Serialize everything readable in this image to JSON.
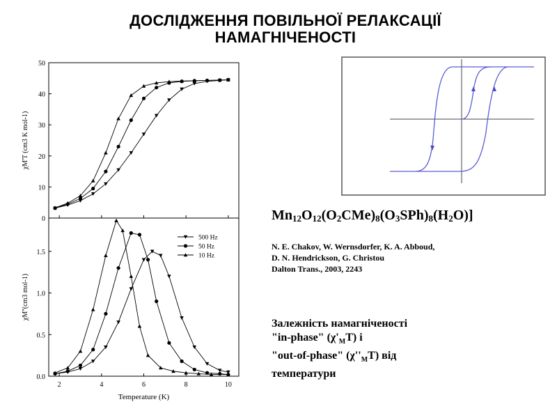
{
  "title": {
    "line1": "ДОСЛІДЖЕННЯ ПОВІЛЬНОЇ РЕЛАКСАЦІЇ",
    "line2": "НАМАГНІЧЕНОСТІ"
  },
  "compound": {
    "formula_parts": [
      "Mn",
      "12",
      "O",
      "12",
      "(O",
      "2",
      "CMe)",
      "8",
      "(O",
      "3",
      "SPh)",
      "8",
      "(H",
      "2",
      "O)]"
    ]
  },
  "reference": {
    "line1": "N. E. Chakov, W. Wernsdorfer, K. A. Abboud,",
    "line2": "D. N. Hendrickson, G. Christou",
    "line3": "Dalton Trans., 2003, 2243"
  },
  "description": {
    "line1": "Залежність намагніченості",
    "line2_pre": "\"in-phase\" (χ'",
    "line2_sub": "M",
    "line2_post": "T) і",
    "line3_pre": "\"out-of-phase\" (χ''",
    "line3_sub": "M",
    "line3_post": "T) від",
    "line4": "температури"
  },
  "chart_data": [
    {
      "type": "line",
      "panel": "top",
      "ylabel": "χM'T (cm3 K mol-1)",
      "ylim": [
        0,
        50
      ],
      "yticks": [
        "0",
        "10",
        "20",
        "30",
        "40",
        "50"
      ],
      "xlim": [
        1.5,
        10.5
      ],
      "series": [
        {
          "name": "500 Hz",
          "marker": "triangle-down",
          "x": [
            1.8,
            2.4,
            3.0,
            3.6,
            4.2,
            4.8,
            5.4,
            6.0,
            6.6,
            7.2,
            7.8,
            8.4,
            9.0,
            9.6,
            10.0
          ],
          "y": [
            3.2,
            4.2,
            5.6,
            7.8,
            11.0,
            15.5,
            21.0,
            27.0,
            33.0,
            38.0,
            41.5,
            43.3,
            44.0,
            44.3,
            44.5
          ]
        },
        {
          "name": "50 Hz",
          "marker": "circle",
          "x": [
            1.8,
            2.4,
            3.0,
            3.6,
            4.2,
            4.8,
            5.4,
            6.0,
            6.6,
            7.2,
            7.8,
            8.4,
            9.0,
            9.6,
            10.0
          ],
          "y": [
            3.2,
            4.5,
            6.3,
            9.5,
            15.0,
            23.0,
            31.5,
            38.5,
            42.0,
            43.5,
            44.0,
            44.2,
            44.3,
            44.4,
            44.5
          ]
        },
        {
          "name": "10 Hz",
          "marker": "triangle-up",
          "x": [
            1.8,
            2.4,
            3.0,
            3.6,
            4.2,
            4.8,
            5.4,
            6.0,
            6.6,
            7.2,
            7.8,
            8.4,
            9.0,
            9.6,
            10.0
          ],
          "y": [
            3.3,
            4.8,
            7.2,
            12.0,
            21.0,
            32.0,
            39.5,
            42.5,
            43.5,
            43.9,
            44.1,
            44.2,
            44.3,
            44.4,
            44.5
          ]
        }
      ]
    },
    {
      "type": "line",
      "panel": "bottom",
      "xlabel": "Temperature (K)",
      "ylabel": "χM''(cm3 mol-1)",
      "ylim": [
        0,
        1.9
      ],
      "yticks": [
        "0.0",
        "0.5",
        "1.0",
        "1.5"
      ],
      "xlim": [
        1.5,
        10.5
      ],
      "xticks": [
        "2",
        "4",
        "6",
        "8",
        "10"
      ],
      "legend": "top-right",
      "series": [
        {
          "name": "500 Hz",
          "marker": "triangle-down",
          "x": [
            1.8,
            2.4,
            3.0,
            3.6,
            4.2,
            4.8,
            5.4,
            6.0,
            6.4,
            6.8,
            7.2,
            7.8,
            8.4,
            9.0,
            9.6,
            10.0
          ],
          "y": [
            0.03,
            0.05,
            0.09,
            0.18,
            0.35,
            0.65,
            1.05,
            1.4,
            1.5,
            1.45,
            1.2,
            0.7,
            0.35,
            0.15,
            0.07,
            0.05
          ]
        },
        {
          "name": "50 Hz",
          "marker": "circle",
          "x": [
            1.8,
            2.4,
            3.0,
            3.6,
            4.2,
            4.8,
            5.4,
            5.8,
            6.2,
            6.6,
            7.2,
            7.8,
            8.4,
            9.0,
            9.6,
            10.0
          ],
          "y": [
            0.03,
            0.06,
            0.13,
            0.32,
            0.75,
            1.3,
            1.72,
            1.7,
            1.4,
            0.9,
            0.4,
            0.18,
            0.08,
            0.04,
            0.03,
            0.02
          ]
        },
        {
          "name": "10 Hz",
          "marker": "triangle-up",
          "x": [
            1.8,
            2.4,
            3.0,
            3.6,
            4.2,
            4.7,
            5.0,
            5.4,
            5.8,
            6.2,
            6.8,
            7.4,
            8.0,
            8.6,
            9.2,
            10.0
          ],
          "y": [
            0.04,
            0.1,
            0.3,
            0.8,
            1.45,
            1.87,
            1.75,
            1.2,
            0.6,
            0.25,
            0.1,
            0.06,
            0.04,
            0.03,
            0.02,
            0.02
          ]
        }
      ]
    }
  ]
}
